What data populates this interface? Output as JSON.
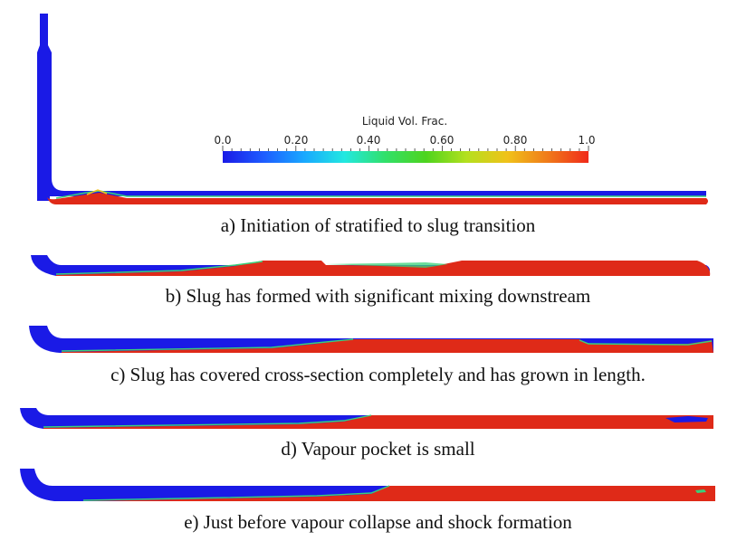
{
  "colorbar": {
    "title": "Liquid Vol. Frac.",
    "ticks": [
      "0.0",
      "0.20",
      "0.40",
      "0.60",
      "0.80",
      "1.0"
    ],
    "range": [
      0.0,
      1.0
    ],
    "stops": [
      "#1a1ae6",
      "#1e5cff",
      "#19a8ff",
      "#22e8e0",
      "#31e06a",
      "#4ed41e",
      "#b4e01e",
      "#f0c21a",
      "#f07a1a",
      "#f02a1a"
    ]
  },
  "colors": {
    "vapour": "#1a1ae6",
    "liquid": "#df2a18",
    "interface": "#39d17a"
  },
  "panels": [
    {
      "id": "a",
      "caption": "a) Initiation of stratified to slug transition",
      "slug_start_fraction": null
    },
    {
      "id": "b",
      "caption": "b) Slug has formed with significant mixing downstream",
      "slug_start_fraction": 0.33
    },
    {
      "id": "c",
      "caption": "c) Slug has covered cross-section completely and has grown in length.",
      "slug_start_fraction": 0.5
    },
    {
      "id": "d",
      "caption": "d) Vapour pocket is small",
      "slug_start_fraction": 0.53
    },
    {
      "id": "e",
      "caption": "e) Just before vapour collapse and shock formation",
      "slug_start_fraction": 0.52
    }
  ]
}
